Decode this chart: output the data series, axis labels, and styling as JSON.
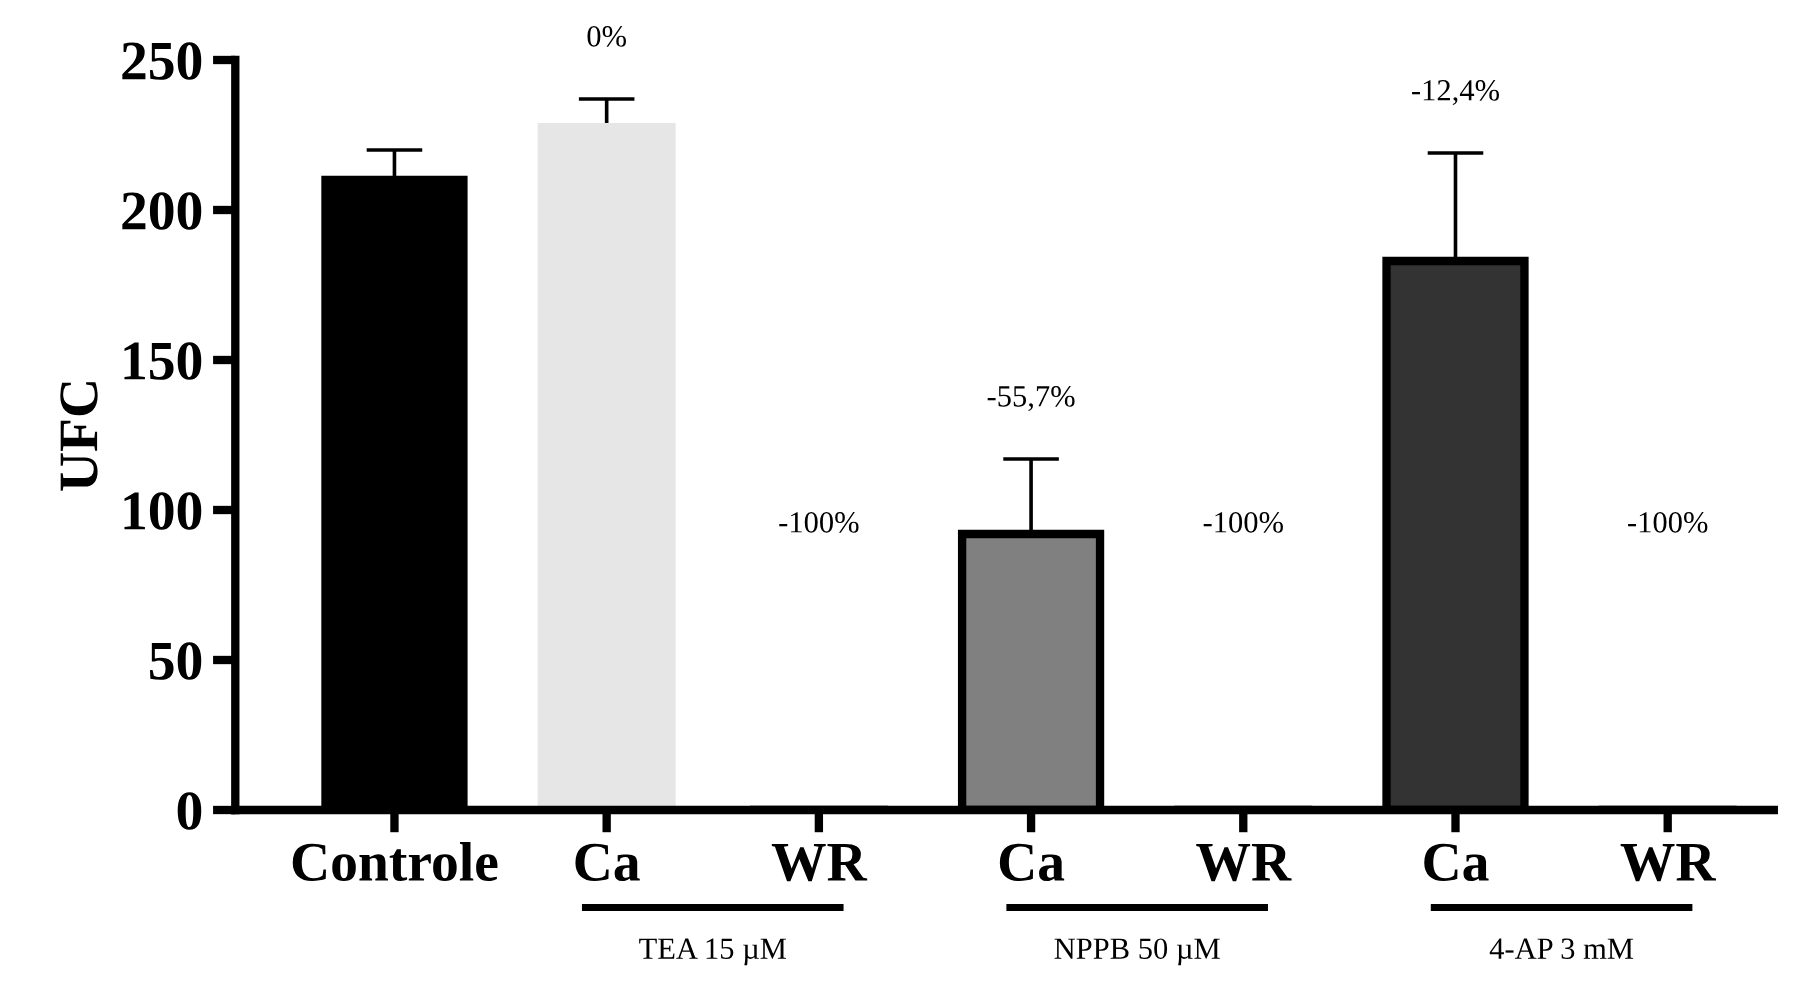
{
  "chart_data": {
    "type": "bar",
    "ylabel": "UFC",
    "categories": [
      "Controle",
      "Ca",
      "WR",
      "Ca",
      "WR",
      "Ca",
      "WR"
    ],
    "values": [
      210,
      229,
      0,
      92,
      0,
      183,
      0
    ],
    "errors": [
      10,
      8,
      null,
      25,
      null,
      36,
      null
    ],
    "colors": [
      "#000000",
      "#e6e6e6",
      "#ffffff",
      "#808080",
      "#ffffff",
      "#333333",
      "#ffffff"
    ],
    "ylim": [
      0,
      250
    ],
    "yticks": [
      0,
      50,
      100,
      150,
      200,
      250
    ],
    "grid": false,
    "legend": false,
    "annotations": [
      "0%",
      "-100%",
      "-55,7%",
      "-100%",
      "-12,4%",
      "-100%",
      "TEA 15 µM",
      "NPPB 50 µM",
      "4-AP 3 mM"
    ]
  }
}
